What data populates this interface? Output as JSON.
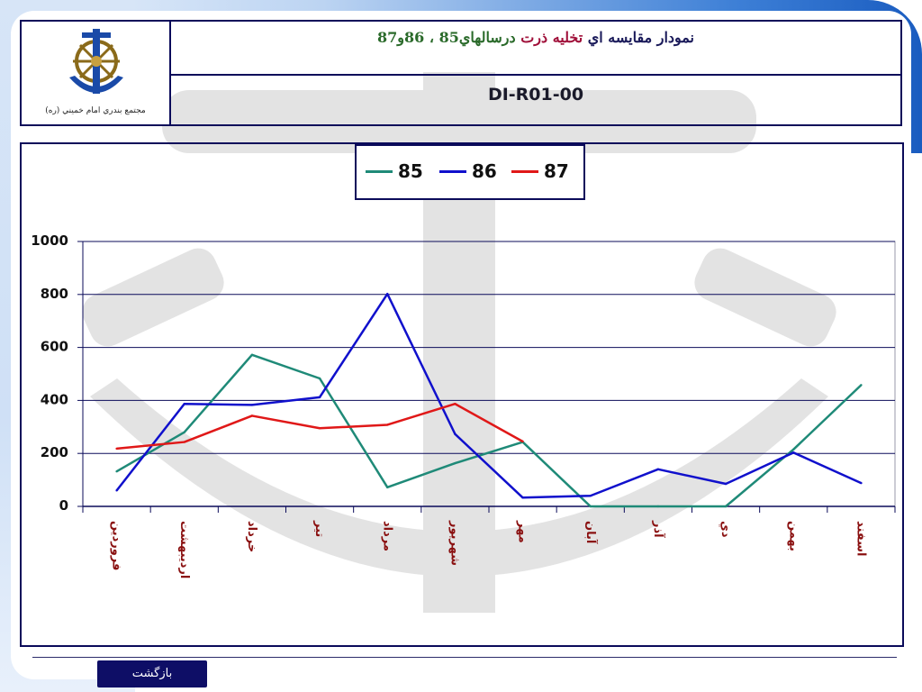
{
  "header": {
    "title_part1": "نمودار مقايسه اي",
    "title_part2": "تخليه ذرت",
    "title_part3": "درسالهاي85 ، 86و87",
    "code": "DI-R01-00",
    "org_name": "مجتمع بندري امام خميني (ره)"
  },
  "footer": {
    "back_label": "بازگشت"
  },
  "colors": {
    "frame": "#0b0b5a",
    "series_85": "#1f8a78",
    "series_86": "#1010cc",
    "series_87": "#e01818",
    "x_label": "#8a1010"
  },
  "chart_data": {
    "type": "line",
    "categories": [
      "فروردين",
      "ارديبهشت",
      "خرداد",
      "تير",
      "مرداد",
      "شهريور",
      "مهر",
      "آبان",
      "آذر",
      "دي",
      "بهمن",
      "اسفند"
    ],
    "y_ticks": [
      "1000",
      "800",
      "600",
      "400",
      "200",
      "0"
    ],
    "ylim": [
      0,
      1000
    ],
    "grid": true,
    "legend_position": "top-center",
    "series": [
      {
        "name": "85",
        "color": "#1f8a78",
        "values": [
          132,
          280,
          572,
          483,
          72,
          163,
          243,
          0,
          0,
          0,
          215,
          458
        ]
      },
      {
        "name": "86",
        "color": "#1010cc",
        "values": [
          60,
          387,
          383,
          412,
          802,
          273,
          33,
          40,
          140,
          85,
          203,
          88
        ]
      },
      {
        "name": "87",
        "color": "#e01818",
        "values": [
          218,
          243,
          342,
          295,
          308,
          387,
          245,
          null,
          null,
          null,
          null,
          null
        ]
      }
    ]
  }
}
